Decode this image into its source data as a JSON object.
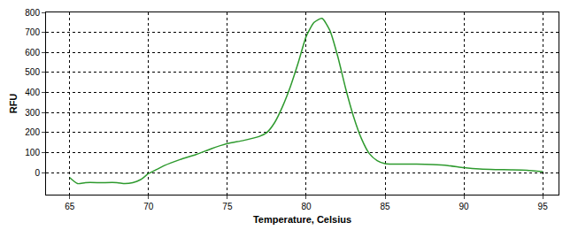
{
  "chart_data": {
    "type": "line",
    "x_label": "Temperature, Celsius",
    "y_label": "RFU",
    "x": [
      65,
      65.5,
      66,
      67,
      68,
      68.5,
      69,
      69.5,
      70,
      70.5,
      71,
      72,
      73,
      74,
      75,
      76,
      77,
      77.5,
      78,
      78.5,
      79,
      79.5,
      80,
      80.5,
      81,
      81.5,
      82,
      82.5,
      83,
      83.5,
      84,
      84.5,
      85,
      86,
      87,
      88,
      89,
      90,
      91,
      92,
      93,
      94,
      95
    ],
    "values": [
      -25,
      -55,
      -50,
      -50,
      -50,
      -55,
      -50,
      -35,
      -5,
      15,
      35,
      65,
      90,
      120,
      145,
      160,
      180,
      200,
      250,
      330,
      430,
      550,
      680,
      750,
      770,
      710,
      580,
      420,
      280,
      170,
      95,
      60,
      45,
      42,
      42,
      40,
      35,
      25,
      18,
      15,
      14,
      12,
      5
    ],
    "color": "#2e9a2e",
    "xlim": [
      63.5,
      96
    ],
    "xticks": [
      65,
      70,
      75,
      80,
      85,
      90,
      95
    ],
    "ylim": [
      -110,
      800
    ],
    "yticks": [
      0,
      100,
      200,
      300,
      400,
      500,
      600,
      700,
      800
    ],
    "grid": true
  }
}
